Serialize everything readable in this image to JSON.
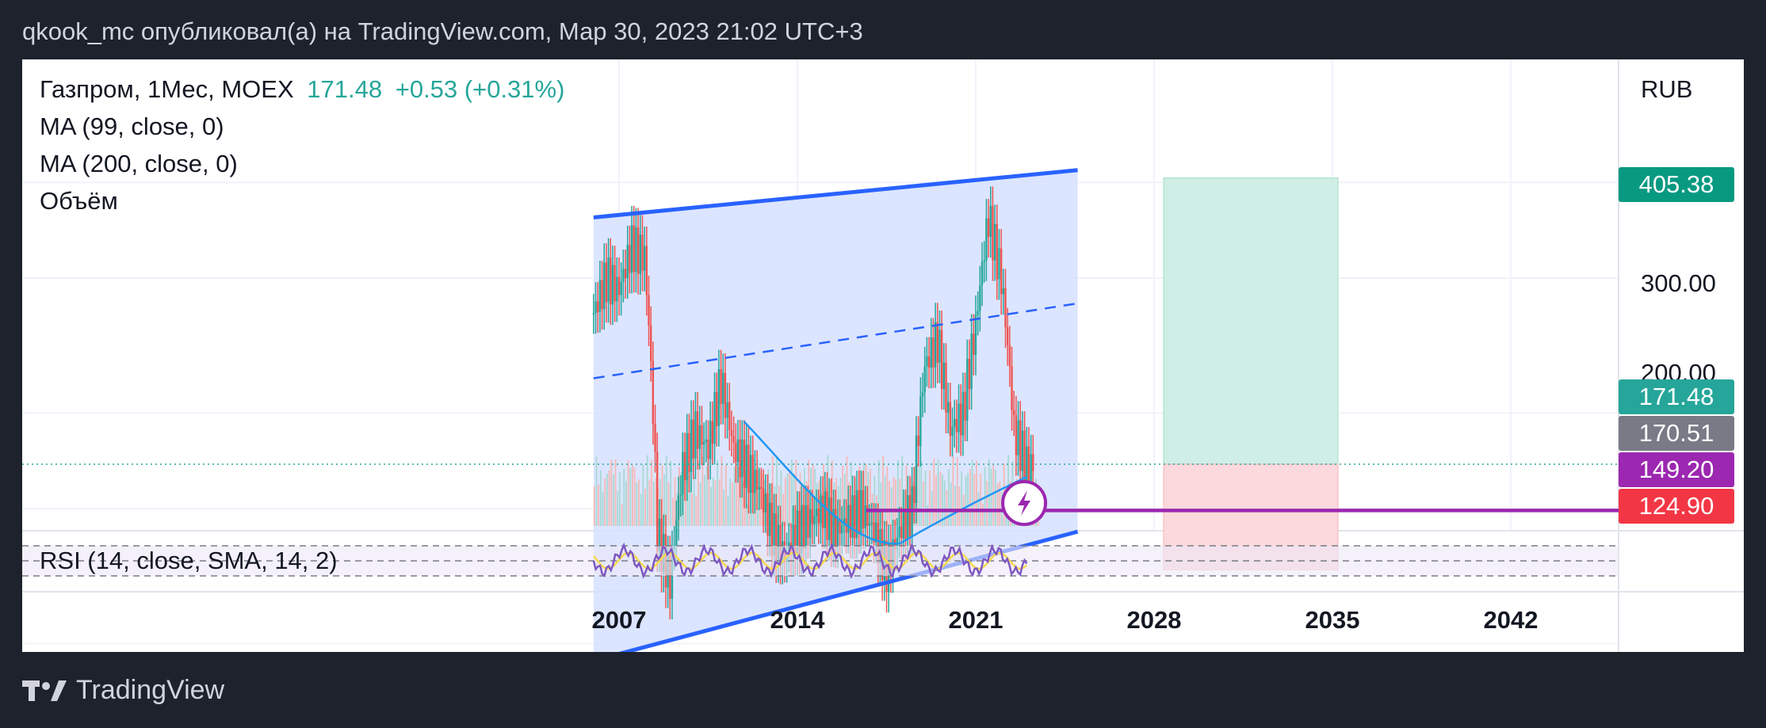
{
  "header": {
    "publish_line": "qkook_mc опубликовал(а) на TradingView.com, Мар 30, 2023 21:02 UTC+3"
  },
  "legend": {
    "symbol_line": "Газпром, 1Мес, MOEX",
    "price": "171.48",
    "change": "+0.53 (+0.31%)",
    "ma99": "MA (99, close, 0)",
    "ma200": "MA (200, close, 0)",
    "volume": "Объём",
    "rsi": "RSI (14, close, SMA, 14, 2)"
  },
  "price_axis": {
    "currency": "RUB",
    "ticks": [
      "300.00",
      "200.00"
    ]
  },
  "price_tags": [
    {
      "label": "405.38",
      "color": "#089981"
    },
    {
      "label": "171.48",
      "color": "#26a69a"
    },
    {
      "label": "170.51",
      "color": "#787b86"
    },
    {
      "label": "149.20",
      "color": "#9c27b0"
    },
    {
      "label": "124.90",
      "color": "#f23645"
    }
  ],
  "time_axis": {
    "ticks": [
      "2007",
      "2014",
      "2021",
      "2028",
      "2035",
      "2042"
    ]
  },
  "footer": {
    "brand": "TradingView"
  },
  "colors": {
    "channel_line": "#2962ff",
    "channel_fill": "#d6e1ff",
    "horizontal_line": "#9c27b0",
    "ma_line": "#2196f3",
    "candle_up": "#26a69a",
    "candle_down": "#ef5350",
    "rsi_line": "#7e57c2",
    "rsi_ma": "#f7d94c",
    "target_zone": "#cfeee5",
    "stop_zone": "#fcd9dc"
  },
  "chart_data": {
    "type": "candlestick",
    "symbol": "Газпром",
    "timeframe": "1Мес",
    "exchange": "MOEX",
    "last_price": 171.48,
    "x_ticks": [
      2007,
      2014,
      2021,
      2028,
      2035,
      2042
    ],
    "y_ticks": [
      200,
      300
    ],
    "close_series": {
      "years": [
        2006.0,
        2006.5,
        2007.0,
        2007.5,
        2008.0,
        2008.5,
        2009.0,
        2009.5,
        2010.0,
        2010.5,
        2011.0,
        2011.5,
        2012.0,
        2012.5,
        2013.0,
        2013.5,
        2014.0,
        2014.5,
        2015.0,
        2015.5,
        2016.0,
        2016.5,
        2017.0,
        2017.5,
        2018.0,
        2018.5,
        2019.0,
        2019.5,
        2020.0,
        2020.5,
        2021.0,
        2021.5,
        2022.0,
        2022.5,
        2023.0
      ],
      "values": [
        270,
        300,
        290,
        330,
        320,
        140,
        120,
        170,
        190,
        180,
        220,
        180,
        170,
        160,
        140,
        130,
        140,
        145,
        150,
        140,
        145,
        150,
        140,
        125,
        140,
        150,
        230,
        250,
        190,
        200,
        260,
        360,
        300,
        190,
        171
      ]
    },
    "channel": {
      "upper": [
        {
          "x": 2006.0,
          "y": 360
        },
        {
          "x": 2025.0,
          "y": 415
        }
      ],
      "lower": [
        {
          "x": 2006.0,
          "y": 95
        },
        {
          "x": 2025.0,
          "y": 140
        }
      ],
      "mid": [
        {
          "x": 2006.0,
          "y": 222
        },
        {
          "x": 2025.0,
          "y": 278
        }
      ]
    },
    "levels": {
      "target": 405.38,
      "entry": 171.48,
      "support": 149.2,
      "stop": 124.9
    },
    "rsi": {
      "label": "RSI (14, close, SMA, 14, 2)"
    }
  }
}
